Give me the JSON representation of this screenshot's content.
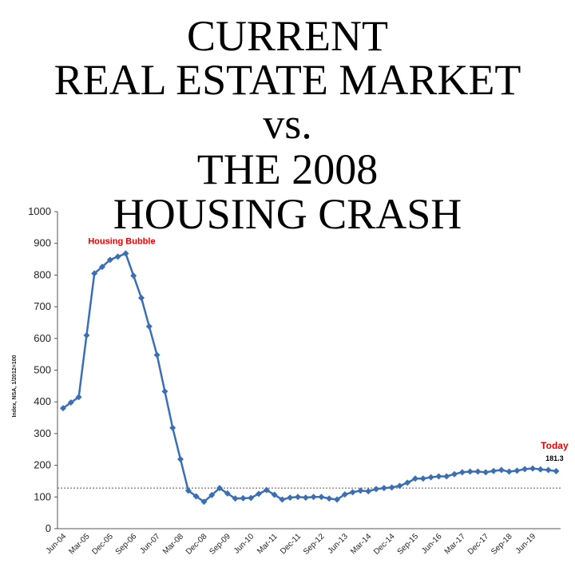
{
  "chart_data": {
    "type": "line",
    "title": [
      "CURRENT",
      "REAL ESTATE MARKET",
      "vs.",
      "THE 2008",
      "HOUSING CRASH"
    ],
    "y_label": "Index, NSA, 1/2012=100",
    "categories": [
      "Jun-04",
      null,
      null,
      "Mar-05",
      null,
      null,
      "Dec-05",
      null,
      null,
      "Sep-06",
      null,
      null,
      "Jun-07",
      null,
      null,
      "Mar-08",
      null,
      null,
      "Dec-08",
      null,
      null,
      "Sep-09",
      null,
      null,
      "Jun-10",
      null,
      null,
      "Mar-11",
      null,
      null,
      "Dec-11",
      null,
      null,
      "Sep-12",
      null,
      null,
      "Jun-13",
      null,
      null,
      "Mar-14",
      null,
      null,
      "Dec-14",
      null,
      null,
      "Sep-15",
      null,
      null,
      "Jun-16",
      null,
      null,
      "Mar-17",
      null,
      null,
      "Dec-17",
      null,
      null,
      "Sep-18",
      null,
      null,
      "Jun-19",
      null,
      null,
      null
    ],
    "values": [
      380,
      398,
      415,
      610,
      805,
      826,
      848,
      858,
      868,
      798,
      728,
      638,
      548,
      433,
      318,
      219,
      120,
      102,
      85,
      106,
      128,
      111,
      95,
      96,
      97,
      110,
      122,
      107,
      92,
      98,
      100,
      98,
      100,
      100,
      95,
      92,
      108,
      115,
      120,
      118,
      125,
      128,
      130,
      135,
      145,
      158,
      158,
      162,
      165,
      165,
      172,
      178,
      180,
      180,
      178,
      182,
      185,
      180,
      183,
      188,
      190,
      187,
      185,
      181.3
    ],
    "color": "#3a6fb5",
    "ylim": [
      0,
      1000
    ],
    "yticks": [
      0,
      100,
      200,
      300,
      400,
      500,
      600,
      700,
      800,
      900,
      1000
    ],
    "reference_line": 128,
    "annotations": [
      {
        "text": "Housing Bubble",
        "index": 8
      },
      {
        "text": "Today",
        "index": 63
      }
    ]
  }
}
